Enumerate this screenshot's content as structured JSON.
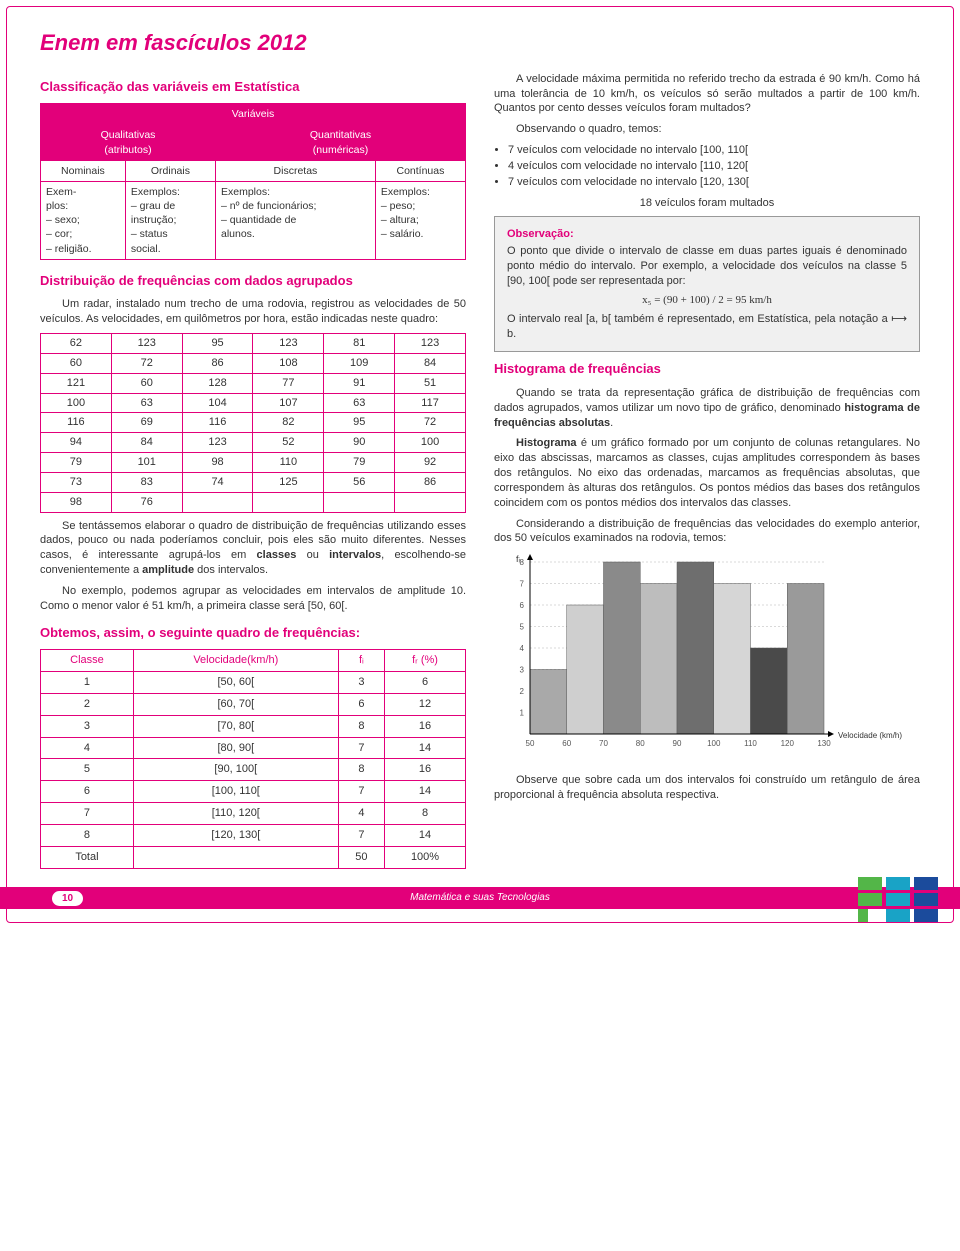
{
  "doc": {
    "title": "Enem em fascículos 2012",
    "section_classif": "Classificação das variáveis em Estatística",
    "section_dist": "Distribuição de frequências com dados agrupados",
    "section_obtemos": "Obtemos, assim, o seguinte quadro de frequências:",
    "section_hist": "Histograma de frequências"
  },
  "vars_table": {
    "top": "Variáveis",
    "qualit": "Qualitativas\n(atributos)",
    "quant": "Quantitativas\n(numéricas)",
    "nominais": "Nominais",
    "ordinais": "Ordinais",
    "discretas": "Discretas",
    "continuas": "Contínuas",
    "ex_nom": "Exem-\nplos:\n– sexo;\n– cor;\n– religião.",
    "ex_ord": "Exemplos:\n– grau de\ninstrução;\n– status\nsocial.",
    "ex_disc": "Exemplos:\n– nº de funcionários;\n– quantidade de\nalunos.",
    "ex_cont": "Exemplos:\n– peso;\n– altura;\n– salário."
  },
  "para": {
    "radar": "Um radar, instalado num trecho de uma rodovia, registrou as velocidades de 50 veículos. As velocidades, em quilômetros por hora, estão indicadas neste quadro:",
    "after_grid": "Se tentássemos elaborar o quadro de distribuição de frequências utilizando esses dados, pouco ou nada poderíamos concluir, pois eles são muito diferentes. Nesses casos, é interessante agrupá-los em <b>classes</b> ou <b>intervalos</b>, escolhendo-se convenientemente a <b>amplitude</b> dos intervalos.",
    "after_grid2": "No exemplo, podemos agrupar as velocidades em intervalos de amplitude 10. Como o menor valor é 51 km/h, a primeira classe será [50, 60[.",
    "r_intro": "A velocidade máxima permitida no referido trecho da estrada é 90 km/h. Como há uma tolerância de 10 km/h, os veículos só serão multados a partir de 100 km/h. Quantos por cento desses veículos foram multados?",
    "r_observ": "Observando o quadro, temos:",
    "bullets": [
      "7 veículos com velocidade no intervalo [100, 110[",
      "4 veículos com velocidade no intervalo [110, 120[",
      "7 veículos com velocidade no intervalo [120, 130["
    ],
    "total_mult": "18 veículos foram multados",
    "obs_title": "Observação:",
    "obs_body": "O ponto que divide o intervalo de classe em duas partes iguais é denominado ponto médio do intervalo. Por exemplo, a velocidade dos veículos na classe 5 [90, 100[ pode ser representada por:",
    "obs_formula": "x₅ = (90 + 100) / 2 = 95 km/h",
    "obs_after": "O intervalo real [a, b[ também é representado, em Estatística, pela notação a ⟼ b.",
    "hist1": "Quando se trata da representação gráfica de distribuição de frequências com dados agrupados, vamos utilizar um novo tipo de gráfico, denominado <b>histograma de frequências absolutas</b>.",
    "hist2": "<b>Histograma</b> é um gráfico formado por um conjunto de colunas retangulares. No eixo das abscissas, marcamos as classes, cujas amplitudes correspondem às bases dos retângulos. No eixo das ordenadas, marcamos as frequências absolutas, que correspondem às alturas dos retângulos. Os pontos médios das bases dos retângulos coincidem com os pontos médios dos intervalos das classes.",
    "hist3": "Considerando a distribuição de frequências das velocidades do exemplo anterior, dos 50 veículos examinados na rodovia, temos:",
    "hist_after": "Observe que sobre cada um dos intervalos foi construído um retângulo de área proporcional à frequência absoluta respectiva."
  },
  "grid": [
    [
      62,
      123,
      95,
      123,
      81,
      123
    ],
    [
      60,
      72,
      86,
      108,
      109,
      84
    ],
    [
      121,
      60,
      128,
      77,
      91,
      51
    ],
    [
      100,
      63,
      104,
      107,
      63,
      117
    ],
    [
      116,
      69,
      116,
      82,
      95,
      72
    ],
    [
      94,
      84,
      123,
      52,
      90,
      100
    ],
    [
      79,
      101,
      98,
      110,
      79,
      92
    ],
    [
      73,
      83,
      74,
      125,
      56,
      86
    ],
    [
      98,
      76,
      "",
      "",
      "",
      ""
    ]
  ],
  "freq": {
    "headers": [
      "Classe",
      "Velocidade(km/h)",
      "fᵢ",
      "fᵣ (%)"
    ],
    "rows": [
      [
        "1",
        "[50, 60[",
        "3",
        "6"
      ],
      [
        "2",
        "[60, 70[",
        "6",
        "12"
      ],
      [
        "3",
        "[70, 80[",
        "8",
        "16"
      ],
      [
        "4",
        "[80, 90[",
        "7",
        "14"
      ],
      [
        "5",
        "[90, 100[",
        "8",
        "16"
      ],
      [
        "6",
        "[100, 110[",
        "7",
        "14"
      ],
      [
        "7",
        "[110, 120[",
        "4",
        "8"
      ],
      [
        "8",
        "[120, 130[",
        "7",
        "14"
      ],
      [
        "Total",
        "",
        "50",
        "100%"
      ]
    ]
  },
  "histogram": {
    "ylabel": "fᵢ",
    "yticks": [
      1,
      2,
      3,
      4,
      5,
      6,
      7,
      8
    ],
    "xticks": [
      50,
      60,
      70,
      80,
      90,
      100,
      110,
      120,
      130
    ],
    "xlabel": "Velocidade (km/h)",
    "values": [
      3,
      6,
      8,
      7,
      8,
      7,
      4,
      7
    ],
    "bar_colors": [
      "#a9a9a9",
      "#cfcfcf",
      "#8a8a8a",
      "#bdbdbd",
      "#6e6e6e",
      "#d6d6d6",
      "#4a4a4a",
      "#9a9a9a"
    ],
    "ymax": 8,
    "grid_color": "#d9d9d9",
    "axis_color": "#000000"
  },
  "footer": {
    "page": "10",
    "subject": "Matemática e suas Tecnologias"
  },
  "colors": {
    "brand": "#e2007a",
    "logo_green": "#53b648",
    "logo_cyan": "#19a3c6",
    "logo_blue": "#1b4b9c"
  }
}
